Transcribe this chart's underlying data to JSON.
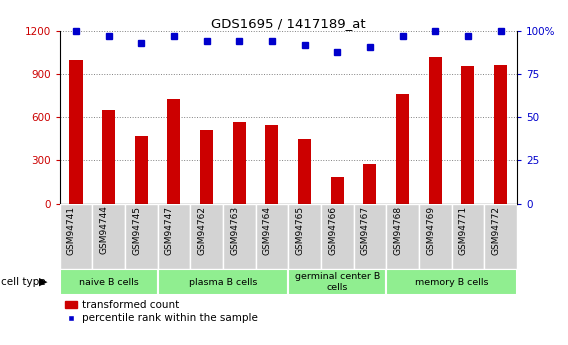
{
  "title": "GDS1695 / 1417189_at",
  "samples": [
    "GSM94741",
    "GSM94744",
    "GSM94745",
    "GSM94747",
    "GSM94762",
    "GSM94763",
    "GSM94764",
    "GSM94765",
    "GSM94766",
    "GSM94767",
    "GSM94768",
    "GSM94769",
    "GSM94771",
    "GSM94772"
  ],
  "bar_values": [
    1000,
    650,
    470,
    730,
    510,
    565,
    545,
    450,
    185,
    275,
    760,
    1020,
    960,
    965
  ],
  "dot_values": [
    100,
    97,
    93,
    97,
    94,
    94,
    94,
    92,
    88,
    91,
    97,
    100,
    97,
    100
  ],
  "bar_color": "#cc0000",
  "dot_color": "#0000cc",
  "ylim_left": [
    0,
    1200
  ],
  "ylim_right": [
    0,
    100
  ],
  "yticks_left": [
    0,
    300,
    600,
    900,
    1200
  ],
  "yticks_right": [
    0,
    25,
    50,
    75,
    100
  ],
  "cell_groups": [
    {
      "label": "naive B cells",
      "start": 0,
      "end": 3
    },
    {
      "label": "plasma B cells",
      "start": 3,
      "end": 7
    },
    {
      "label": "germinal center B\ncells",
      "start": 7,
      "end": 10
    },
    {
      "label": "memory B cells",
      "start": 10,
      "end": 14
    }
  ],
  "legend_bar_label": "transformed count",
  "legend_dot_label": "percentile rank within the sample",
  "cell_type_label": "cell type",
  "cell_group_color": "#90ee90",
  "xtick_bg_color": "#d3d3d3",
  "bg_color": "#ffffff"
}
